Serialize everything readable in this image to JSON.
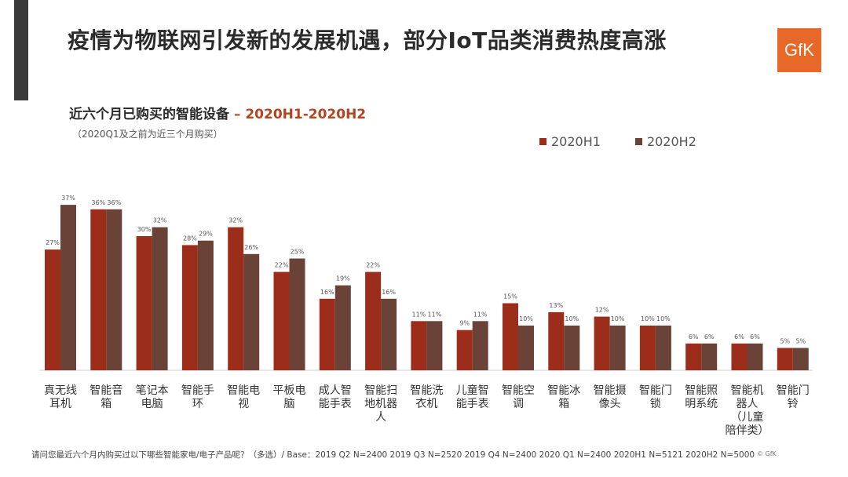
{
  "header": {
    "title": "疫情为物联网引发新的发展机遇，部分IoT品类消费热度高涨",
    "logo_text": "GfK"
  },
  "chart_data": {
    "type": "bar",
    "title_prefix": "近六个月已购买的智能设备",
    "title_suffix": " – 2020H1-2020H2",
    "note": "（2020Q1及之前为近三个月购买）",
    "categories": [
      "真无线耳机",
      "智能音箱",
      "笔记本电脑",
      "智能手环",
      "智能电视",
      "平板电脑",
      "成人智能手表",
      "智能扫地机器人",
      "智能洗衣机",
      "儿童智能手表",
      "智能空调",
      "智能冰箱",
      "智能摄像头",
      "智能门锁",
      "智能照明系统",
      "智能机器人（儿童陪伴类）",
      "智能门铃"
    ],
    "category_lines": [
      [
        "真无线",
        "耳机"
      ],
      [
        "智能音",
        "箱"
      ],
      [
        "笔记本",
        "电脑"
      ],
      [
        "智能手",
        "环"
      ],
      [
        "智能电",
        "视"
      ],
      [
        "平板电",
        "脑"
      ],
      [
        "成人智",
        "能手表"
      ],
      [
        "智能扫",
        "地机器",
        "人"
      ],
      [
        "智能洗",
        "衣机"
      ],
      [
        "儿童智",
        "能手表"
      ],
      [
        "智能空",
        "调"
      ],
      [
        "智能冰",
        "箱"
      ],
      [
        "智能摄",
        "像头"
      ],
      [
        "智能门",
        "锁"
      ],
      [
        "智能照",
        "明系统"
      ],
      [
        "智能机",
        "器人",
        "（儿童",
        "陪伴类）"
      ],
      [
        "智能门",
        "铃"
      ]
    ],
    "series": [
      {
        "name": "2020H1",
        "color": "#9b2d1a",
        "values": [
          27,
          36,
          30,
          28,
          32,
          22,
          16,
          22,
          11,
          9,
          15,
          13,
          12,
          10,
          6,
          6,
          5
        ]
      },
      {
        "name": "2020H2",
        "color": "#6b4237",
        "values": [
          37,
          36,
          32,
          29,
          26,
          25,
          19,
          16,
          11,
          11,
          10,
          10,
          10,
          10,
          6,
          6,
          5
        ]
      }
    ],
    "value_suffix": "%",
    "legend_position": "top-right"
  },
  "footer": {
    "question": "请问您最近六个月内购买过以下哪些智能家电/电子产品呢？（多选）/ Base：2019 Q2 N=2400 2019 Q3 N=2520 2019 Q4 N=2400 2020 Q1 N=2400 2020H1 N=5121 2020H2 N=5000",
    "copyright": "© GfK"
  }
}
